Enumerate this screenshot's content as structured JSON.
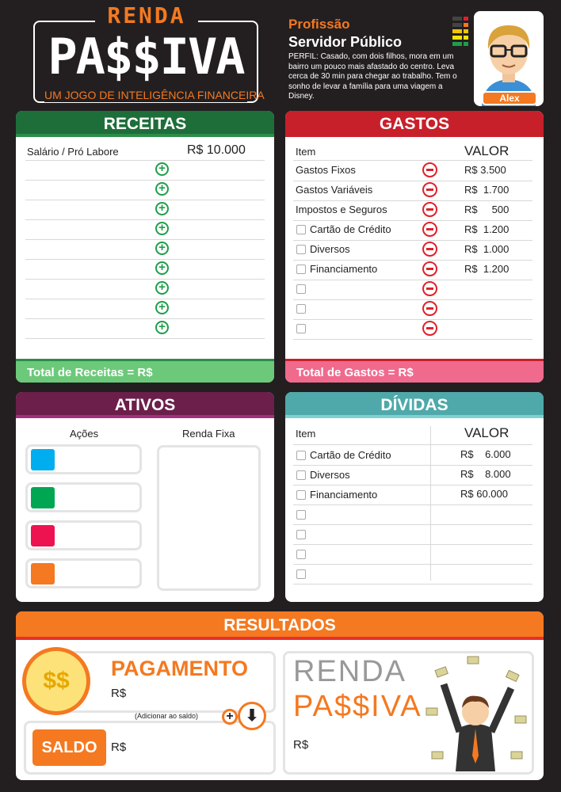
{
  "logo": {
    "top": "RENDA",
    "main": "PA$$IVA",
    "subtitle": "UM JOGO DE INTELIGÊNCIA FINANCEIRA"
  },
  "profile": {
    "label": "Profissão",
    "profession": "Servidor Público",
    "description": "PERFIL: Casado, com dois filhos, mora em um bairro um pouco mais afastado do centro. Leva cerca de 30 min para chegar ao trabalho. Tem o sonho de levar a família para uma viagem a Disney.",
    "name": "Alex",
    "meter_colors": [
      "#e0202a",
      "#f47920",
      "#f4c400",
      "#f4e400",
      "#1e9e4a"
    ]
  },
  "receitas": {
    "title": "RECEITAS",
    "color": "#1e6e3a",
    "rows": [
      {
        "item": "Salário / Pró Labore",
        "value": "R$ 10.000"
      }
    ],
    "empty_rows": 9,
    "total_label": "Total de Receitas = R$"
  },
  "gastos": {
    "title": "GASTOS",
    "color": "#c8202a",
    "col_item": "Item",
    "col_value": "VALOR",
    "rows": [
      {
        "item": "Gastos Fixos",
        "value": "R$ 3.500",
        "checkbox": false
      },
      {
        "item": "Gastos Variáveis",
        "value": "R$  1.700",
        "checkbox": false
      },
      {
        "item": "Impostos e Seguros",
        "value": "R$     500",
        "checkbox": false
      },
      {
        "item": "Cartão de Crédito",
        "value": "R$  1.200",
        "checkbox": true
      },
      {
        "item": "Diversos",
        "value": "R$  1.000",
        "checkbox": true
      },
      {
        "item": "Financiamento",
        "value": "R$  1.200",
        "checkbox": true
      }
    ],
    "empty_rows": 3,
    "total_label": "Total de Gastos = R$"
  },
  "ativos": {
    "title": "ATIVOS",
    "col_acoes": "Ações",
    "col_renda_fixa": "Renda Fixa",
    "acoes_colors": [
      "#00aeef",
      "#00a651",
      "#ed1250",
      "#f47920"
    ]
  },
  "dividas": {
    "title": "DÍVIDAS",
    "color": "#4fa9aa",
    "col_item": "Item",
    "col_value": "VALOR",
    "rows": [
      {
        "item": "Cartão de Crédito",
        "value": "R$    6.000"
      },
      {
        "item": "Diversos",
        "value": "R$    8.000"
      },
      {
        "item": "Financiamento",
        "value": "R$ 60.000"
      }
    ],
    "empty_rows": 4
  },
  "resultados": {
    "title": "RESULTADOS",
    "pagamento": "PAGAMENTO",
    "pagamento_value": "R$",
    "add_hint": "(Adicionar ao saldo)",
    "saldo": "SALDO",
    "saldo_value": "R$",
    "rp_renda": "RENDA",
    "rp_passiva": "PA$$IVA",
    "rp_value": "R$"
  }
}
